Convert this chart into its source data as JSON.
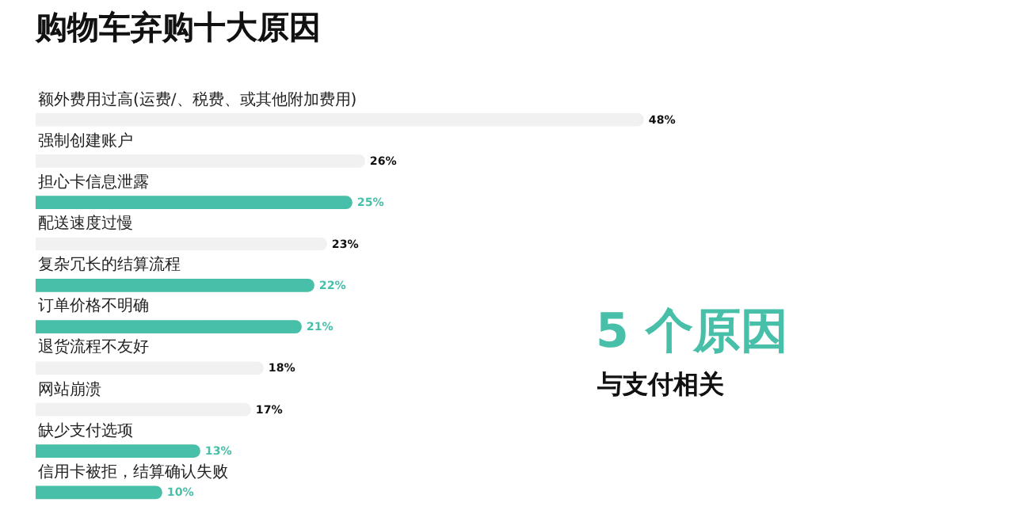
{
  "chart_data": {
    "type": "bar",
    "orientation": "horizontal",
    "title": "购物车弃购十大原因",
    "categories": [
      "额外费用过高(运费/、税费、或其他附加费用)",
      "强制创建账户",
      "担心卡信息泄露",
      "配送速度过慢",
      "复杂冗长的结算流程",
      "订单价格不明确",
      "退货流程不友好",
      "网站崩溃",
      "缺少支付选项",
      "信用卡被拒，结算确认失败"
    ],
    "values": [
      48,
      26,
      25,
      23,
      22,
      21,
      18,
      17,
      13,
      10
    ],
    "colors": [
      "#f1f1f1",
      "#f1f1f1",
      "#48bfa8",
      "#f1f1f1",
      "#48bfa8",
      "#48bfa8",
      "#f1f1f1",
      "#f1f1f1",
      "#48bfa8",
      "#48bfa8"
    ],
    "value_labels": [
      "48%",
      "26%",
      "25%",
      "23%",
      "22%",
      "21%",
      "18%",
      "17%",
      "13%",
      "10%"
    ],
    "annotations": [
      "5 个原因",
      "与支付相关"
    ]
  }
}
